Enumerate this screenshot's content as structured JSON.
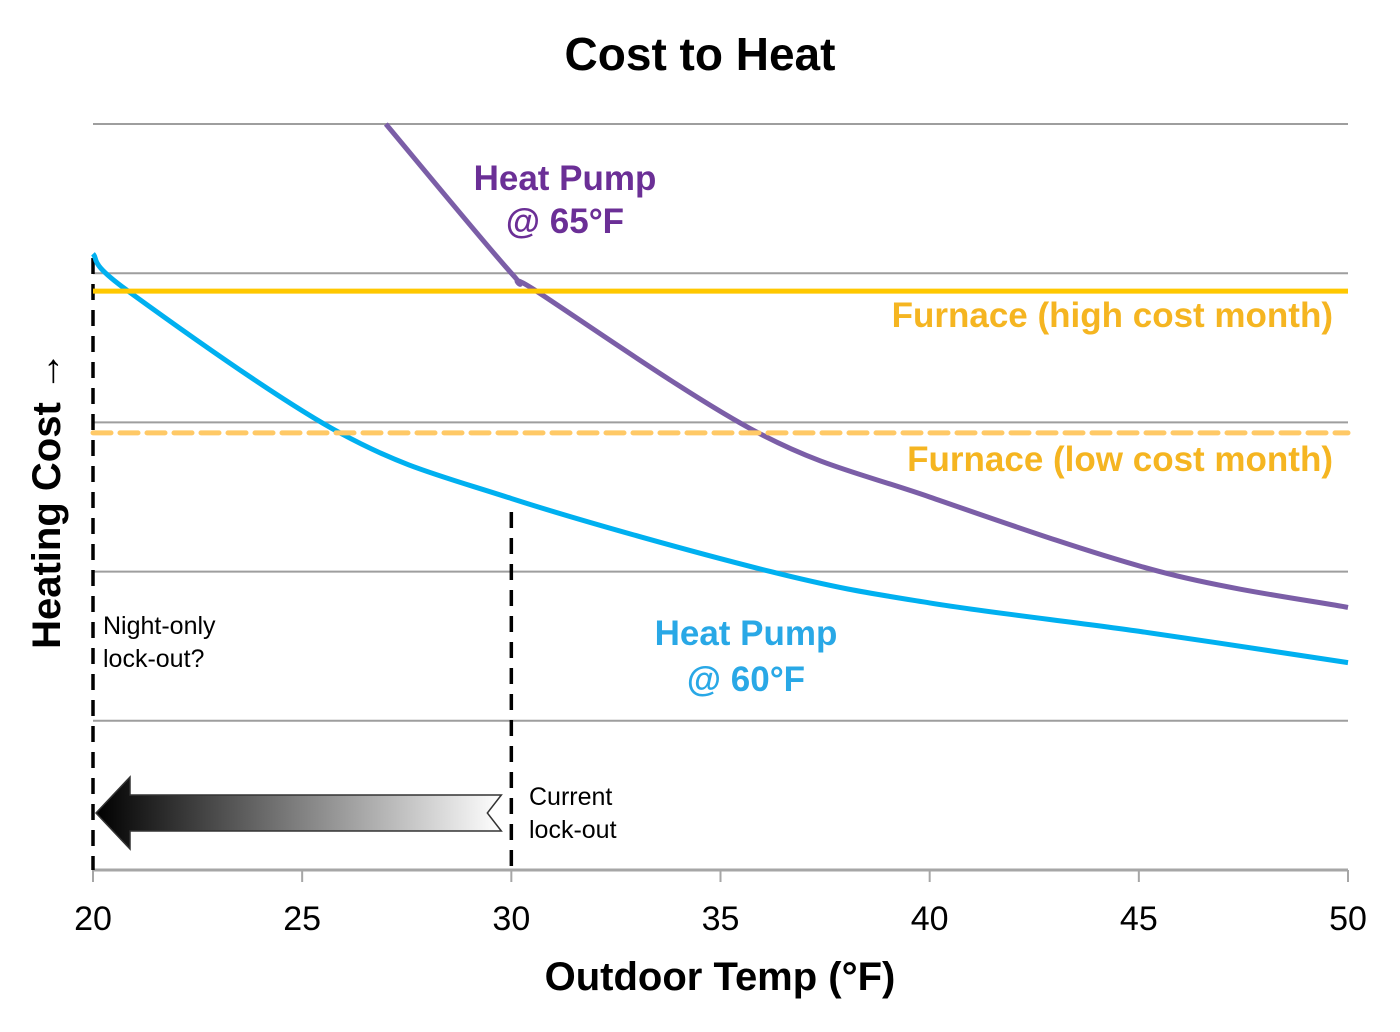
{
  "chart_data": {
    "type": "line",
    "title": "Cost to Heat",
    "xlabel": "Outdoor Temp (°F)",
    "ylabel": "Heating Cost →",
    "xlim": [
      20,
      50
    ],
    "ylim": [
      0,
      5
    ],
    "x_ticks": [
      20,
      25,
      30,
      35,
      40,
      45,
      50
    ],
    "x_tick_labels": [
      "20",
      "25",
      "30",
      "35",
      "40",
      "45",
      "50"
    ],
    "y_gridlines": [
      1,
      2,
      3,
      4,
      5
    ],
    "y_units": "relative (no tick labels shown)",
    "grid": true,
    "series": [
      {
        "name": "Heat Pump @ 65°F",
        "label_lines": [
          "Heat Pump",
          "@ 65°F"
        ],
        "color": "#7b5ea7",
        "label_color": "#6b2f96",
        "style": "solid",
        "x": [
          27.0,
          30.0,
          30.6,
          35.9,
          40,
          45.5,
          50
        ],
        "y": [
          5.0,
          4.0,
          3.88,
          2.93,
          2.5,
          2.0,
          1.76
        ]
      },
      {
        "name": "Heat Pump @ 60°F",
        "label_lines": [
          "Heat Pump",
          "@ 60°F"
        ],
        "color": "#00b0f0",
        "label_color": "#29a8e6",
        "style": "solid",
        "x": [
          20,
          20.84,
          25.9,
          30,
          36.2,
          40,
          45,
          50
        ],
        "y": [
          4.13,
          3.88,
          2.93,
          2.49,
          2.0,
          1.79,
          1.6,
          1.39
        ]
      },
      {
        "name": "Furnace (high cost month)",
        "label_lines": [
          "Furnace (high cost month)"
        ],
        "color": "#ffc800",
        "label_color": "#f5b521",
        "style": "solid",
        "x": [
          20,
          50
        ],
        "y": [
          3.88,
          3.88
        ]
      },
      {
        "name": "Furnace (low cost month)",
        "label_lines": [
          "Furnace (low cost month)"
        ],
        "color": "#ffc966",
        "label_color": "#f5b521",
        "style": "dashed",
        "x": [
          20,
          50
        ],
        "y": [
          2.93,
          2.93
        ]
      }
    ],
    "annotations": [
      {
        "type": "vline",
        "x": 20,
        "style": "dashed",
        "text_lines": [
          "Night-only",
          "lock-out?"
        ]
      },
      {
        "type": "vline",
        "x": 30,
        "style": "dashed",
        "text_lines": [
          "Current",
          "lock-out"
        ]
      },
      {
        "type": "arrow",
        "from_x": 30,
        "to_x": 20,
        "direction": "left",
        "fill": "gradient black-to-white"
      }
    ]
  }
}
